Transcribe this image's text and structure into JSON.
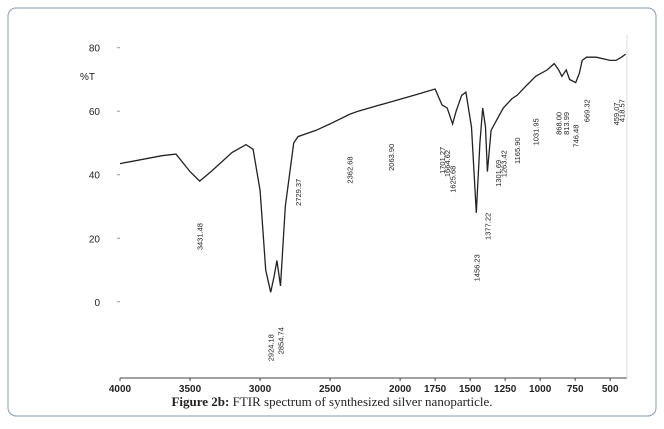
{
  "chart_data": {
    "type": "line",
    "y_label": "%T",
    "caption": {
      "label": "Figure 2b:",
      "text": " FTIR spectrum of synthesized silver nanoparticle."
    },
    "series": [
      {
        "name": "FTIR",
        "color": "#222222",
        "x": [
          4000,
          3700,
          3600,
          3500,
          3431,
          3350,
          3200,
          3100,
          3050,
          3000,
          2960,
          2924,
          2900,
          2880,
          2854,
          2820,
          2760,
          2729,
          2600,
          2500,
          2362,
          2300,
          2063,
          1900,
          1750,
          1701,
          1664,
          1625,
          1600,
          1560,
          1530,
          1490,
          1456,
          1430,
          1410,
          1390,
          1377,
          1350,
          1301,
          1263,
          1200,
          1165,
          1100,
          1032,
          950,
          900,
          868,
          845,
          814,
          790,
          746,
          720,
          700,
          669,
          600,
          500,
          459,
          419,
          390
        ],
        "values": [
          43.5,
          46,
          46.5,
          41,
          38,
          41,
          47,
          49.5,
          48,
          35,
          10,
          3,
          8,
          13,
          5,
          30,
          50,
          52,
          54,
          56,
          59,
          60,
          63,
          65,
          67,
          62,
          61,
          56,
          60,
          65,
          66,
          55,
          28,
          50,
          61,
          55,
          41,
          54,
          58,
          61,
          64,
          65,
          68,
          71,
          73,
          75,
          73,
          71,
          73,
          70,
          69,
          72,
          76,
          77,
          77,
          76,
          76,
          77,
          78
        ]
      }
    ],
    "annotations": [
      {
        "label": "3431.48",
        "x": 3431.48
      },
      {
        "label": "2924.18",
        "x": 2924.18
      },
      {
        "label": "2854.74",
        "x": 2854.74
      },
      {
        "label": "2729.37",
        "x": 2729.37
      },
      {
        "label": "2362.68",
        "x": 2362.68
      },
      {
        "label": "2063.90",
        "x": 2063.9
      },
      {
        "label": "1701.27",
        "x": 1701.27
      },
      {
        "label": "1664.62",
        "x": 1664.62
      },
      {
        "label": "1625.68",
        "x": 1625.68
      },
      {
        "label": "1456.23",
        "x": 1456.23
      },
      {
        "label": "1377.22",
        "x": 1377.22
      },
      {
        "label": "1301.69",
        "x": 1301.69
      },
      {
        "label": "1263.42",
        "x": 1263.42
      },
      {
        "label": "1165.90",
        "x": 1165.9
      },
      {
        "label": "1031.95",
        "x": 1031.95
      },
      {
        "label": "868.00",
        "x": 868
      },
      {
        "label": "813.99",
        "x": 813.99
      },
      {
        "label": "746.48",
        "x": 746.48
      },
      {
        "label": "669.32",
        "x": 669.32
      },
      {
        "label": "459.07",
        "x": 459.07
      },
      {
        "label": "418.57",
        "x": 418.57
      }
    ],
    "xlim": [
      4000,
      380
    ],
    "xticks": [
      4000,
      3500,
      3000,
      2500,
      2000,
      1750,
      1500,
      1250,
      1000,
      750,
      500
    ],
    "ylim": [
      -24,
      84
    ],
    "yticks": [
      0,
      20,
      40,
      60,
      80
    ],
    "grid": false
  }
}
